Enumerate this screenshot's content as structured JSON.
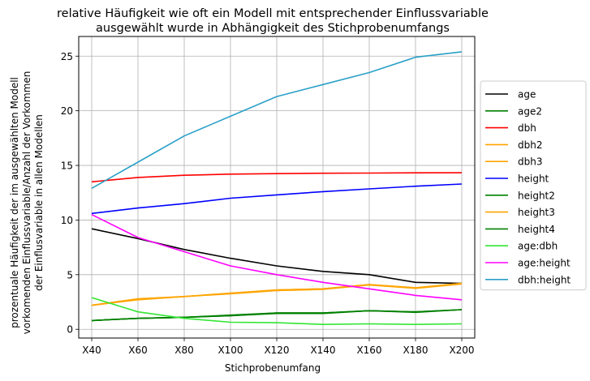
{
  "chart_data": {
    "type": "line",
    "title_lines": [
      "relative Häufigkeit wie oft ein Modell mit entsprechender Einflussvariable",
      "ausgewählt wurde in Abhängigkeit des Stichprobenumfangs"
    ],
    "xlabel": "Stichprobenumfang",
    "ylabel_lines": [
      "prozentuale Häufigkeit der im ausgewählten Modell",
      "vorkomenden Einflussvariable/Anzahl der Vorkommen",
      "der Einflusvariable in  allen Modellen"
    ],
    "categories": [
      "X40",
      "X60",
      "X80",
      "X100",
      "X120",
      "X140",
      "X160",
      "X180",
      "X200"
    ],
    "ylim": [
      -0.8,
      26.8
    ],
    "yticks": [
      0,
      5,
      10,
      15,
      20,
      25
    ],
    "grid": true,
    "legend_position": "right",
    "series": [
      {
        "name": "age",
        "color": "#000000",
        "values": [
          9.2,
          8.3,
          7.3,
          6.5,
          5.8,
          5.3,
          5.0,
          4.3,
          4.2
        ]
      },
      {
        "name": "age2",
        "color": "#008000",
        "values": [
          0.8,
          1.0,
          1.1,
          1.3,
          1.5,
          1.5,
          1.7,
          1.6,
          1.8
        ]
      },
      {
        "name": "dbh",
        "color": "#ff0000",
        "values": [
          13.5,
          13.9,
          14.1,
          14.2,
          14.25,
          14.28,
          14.3,
          14.32,
          14.33
        ]
      },
      {
        "name": "dbh2",
        "color": "#ffa500",
        "values": [
          2.2,
          2.8,
          3.0,
          3.3,
          3.6,
          3.7,
          4.1,
          3.8,
          4.2
        ]
      },
      {
        "name": "dbh3",
        "color": "#ffa500",
        "values": [
          2.2,
          2.75,
          3.0,
          3.25,
          3.55,
          3.65,
          4.05,
          3.75,
          4.15
        ]
      },
      {
        "name": "height",
        "color": "#0000ff",
        "values": [
          10.6,
          11.1,
          11.5,
          12.0,
          12.3,
          12.6,
          12.85,
          13.1,
          13.3
        ]
      },
      {
        "name": "height2",
        "color": "#008000",
        "values": [
          0.8,
          1.0,
          1.1,
          1.25,
          1.45,
          1.45,
          1.7,
          1.55,
          1.8
        ]
      },
      {
        "name": "height3",
        "color": "#ffa500",
        "values": [
          2.2,
          2.7,
          3.0,
          3.3,
          3.6,
          3.7,
          4.1,
          3.8,
          4.2
        ]
      },
      {
        "name": "height4",
        "color": "#008000",
        "values": [
          0.8,
          1.0,
          1.1,
          1.25,
          1.5,
          1.5,
          1.7,
          1.6,
          1.8
        ]
      },
      {
        "name": "age:dbh",
        "color": "#32e632",
        "values": [
          2.9,
          1.6,
          1.0,
          0.65,
          0.6,
          0.45,
          0.5,
          0.45,
          0.5
        ]
      },
      {
        "name": "age:height",
        "color": "#ff00ff",
        "values": [
          10.5,
          8.4,
          7.1,
          5.8,
          5.0,
          4.3,
          3.7,
          3.1,
          2.7
        ]
      },
      {
        "name": "dbh:height",
        "color": "#2aa0c8",
        "values": [
          12.9,
          15.3,
          17.7,
          19.5,
          21.3,
          22.4,
          23.5,
          24.9,
          25.4
        ]
      }
    ]
  }
}
